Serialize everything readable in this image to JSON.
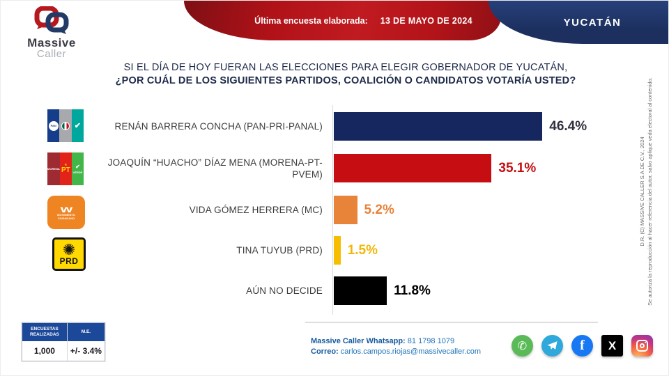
{
  "header": {
    "brand_line1": "Massive",
    "brand_line2": "Caller",
    "banner_label": "Última encuesta elaborada:",
    "banner_date": "13 DE MAYO DE 2024",
    "region": "YUCATÁN"
  },
  "title": {
    "line1": "SI EL DÍA DE HOY FUERAN LAS ELECCIONES PARA ELEGIR GOBERNADOR DE YUCATÁN,",
    "line2": "¿POR CUÁL DE LOS SIGUIENTES PARTIDOS, COALICIÓN  O CANDIDATOS VOTARÍA USTED?"
  },
  "chart_data": {
    "type": "bar",
    "orientation": "horizontal",
    "title": "Intención de voto para gobernador de Yucatán",
    "categories": [
      "RENÁN BARRERA CONCHA  (PAN-PRI-PANAL)",
      "JOAQUÍN “HUACHO” DÍAZ MENA  (MORENA-PT-PVEM)",
      "VIDA GÓMEZ HERRERA (MC)",
      "TINA TUYUB (PRD)",
      "AÚN NO DECIDE"
    ],
    "values": [
      46.4,
      35.1,
      5.2,
      1.5,
      11.8
    ],
    "value_labels": [
      "46.4%",
      "35.1%",
      "5.2%",
      "1.5%",
      "11.8%"
    ],
    "colors": [
      "#16265e",
      "#c60d12",
      "#e8833a",
      "#f7bd00",
      "#000000"
    ],
    "value_colors": [
      "#30303f",
      "#c60d12",
      "#e8833a",
      "#f2b705",
      "#000000"
    ],
    "xlim": [
      0,
      50
    ],
    "grid": false,
    "legend": false
  },
  "logos": {
    "pan_text": "PAN",
    "panal_swoosh": "✔",
    "morena_text": "MORENA",
    "pt_text": "PT",
    "pt_star": "★",
    "verde_bird": "✔",
    "verde_text": "VERDE",
    "mc_bird": "w",
    "mc_line1": "MOVIMIENTO",
    "mc_line2": "CIUDADANO",
    "prd_sun": "✺",
    "prd_text": "PRD"
  },
  "stats": {
    "col1_header": "ENCUESTAS REALIZADAS",
    "col2_header": "M.E.",
    "col1_value": "1,000",
    "col2_value": "+/- 3.4%"
  },
  "contact": {
    "whatsapp_label": "Massive Caller Whatsapp:",
    "whatsapp_value": " 81 1798 1079",
    "email_label": "Correo:",
    "email_value": " carlos.campos.riojas@massivecaller.com"
  },
  "social": {
    "whatsapp_glyph": "✆",
    "facebook_glyph": "f",
    "x_glyph": "X"
  },
  "copyright": {
    "line1": "D.R. (C) MASSIVE CALLER S.A DE C.V., 2024",
    "line2": "Se autoriza la reproducción al hacer referencia del autor, salvo aplique veda electoral al contenido."
  }
}
